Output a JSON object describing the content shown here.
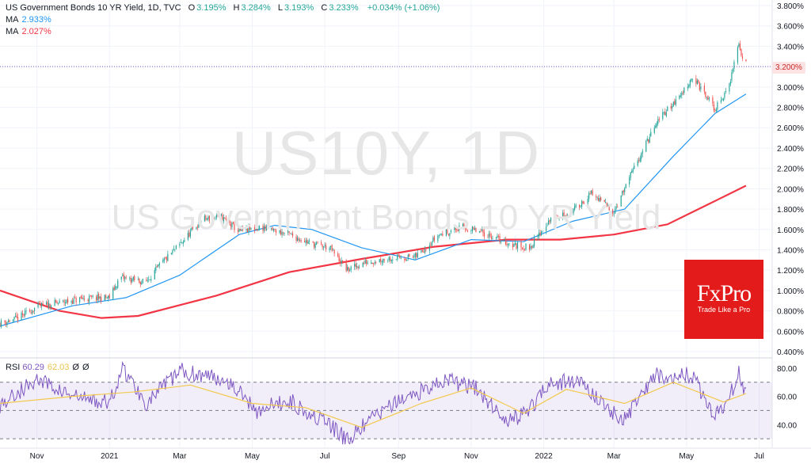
{
  "header": {
    "title": "US Government Bonds 10 YR Yield, 1D, TVC",
    "o_label": "O",
    "o_value": "3.195%",
    "h_label": "H",
    "h_value": "3.284%",
    "l_label": "L",
    "l_value": "3.193%",
    "c_label": "C",
    "c_value": "3.233%",
    "change": "+0.034% (+1.06%)",
    "ma1_label": "MA",
    "ma1_value": "2.933%",
    "ma2_label": "MA",
    "ma2_value": "2.027%"
  },
  "watermark": {
    "symbol": "US10Y, 1D",
    "name": "US Government Bonds 10 YR Yield"
  },
  "brand": {
    "logo": "FxPro",
    "tagline": "Trade Like a Pro"
  },
  "last_price_label": "3.200%",
  "rsi_header": {
    "label": "RSI",
    "value1": "60.29",
    "value2": "62.03",
    "value3": "Ø",
    "value4": "Ø"
  },
  "colors": {
    "up": "#26a69a",
    "down": "#ef5350",
    "ma_fast": "#2196f3",
    "ma_slow": "#f23645",
    "rsi": "#7e57c2",
    "rsi_ma": "#f2c94c",
    "brand": "#e31b1b"
  },
  "chart_data": [
    {
      "type": "candlestick",
      "title": "US Government Bonds 10 YR Yield, 1D, TVC",
      "x_range": [
        "2020-10-01",
        "2022-07-12"
      ],
      "ylim": [
        0.4,
        3.8
      ],
      "y_ticks": [
        "3.800%",
        "3.600%",
        "3.400%",
        "3.200%",
        "3.000%",
        "2.800%",
        "2.600%",
        "2.400%",
        "2.200%",
        "2.000%",
        "1.800%",
        "1.600%",
        "1.400%",
        "1.200%",
        "1.000%",
        "0.800%",
        "0.600%",
        "0.400%"
      ],
      "x_ticks": [
        "Nov",
        "2021",
        "Mar",
        "May",
        "Jul",
        "Sep",
        "Nov",
        "2022",
        "Mar",
        "May",
        "Jul"
      ],
      "x_tick_dates": [
        "2020-11-01",
        "2021-01-01",
        "2021-03-01",
        "2021-05-01",
        "2021-07-01",
        "2021-09-01",
        "2021-11-01",
        "2022-01-01",
        "2022-03-01",
        "2022-05-01",
        "2022-07-01"
      ],
      "price_path": {
        "dates": [
          "2020-10-01",
          "2020-10-15",
          "2020-11-01",
          "2020-11-20",
          "2020-12-10",
          "2021-01-01",
          "2021-01-10",
          "2021-01-31",
          "2021-02-15",
          "2021-03-01",
          "2021-03-20",
          "2021-04-05",
          "2021-04-20",
          "2021-05-10",
          "2021-06-01",
          "2021-06-20",
          "2021-07-05",
          "2021-07-20",
          "2021-08-05",
          "2021-08-25",
          "2021-09-15",
          "2021-10-05",
          "2021-10-25",
          "2021-11-15",
          "2021-12-05",
          "2021-12-20",
          "2022-01-05",
          "2022-01-25",
          "2022-02-10",
          "2022-03-01",
          "2022-03-10",
          "2022-03-25",
          "2022-04-10",
          "2022-04-25",
          "2022-05-06",
          "2022-05-25",
          "2022-06-05",
          "2022-06-14",
          "2022-06-16",
          "2022-06-20"
        ],
        "values": [
          0.68,
          0.72,
          0.84,
          0.88,
          0.92,
          0.93,
          1.13,
          1.08,
          1.28,
          1.45,
          1.7,
          1.72,
          1.58,
          1.62,
          1.55,
          1.46,
          1.42,
          1.2,
          1.28,
          1.32,
          1.33,
          1.55,
          1.62,
          1.55,
          1.45,
          1.42,
          1.68,
          1.78,
          1.95,
          1.78,
          2.0,
          2.38,
          2.72,
          2.9,
          3.1,
          2.78,
          2.98,
          3.44,
          3.3,
          3.23
        ]
      },
      "series": [
        {
          "name": "MA",
          "last": 2.933,
          "dates": [
            "2020-10-01",
            "2020-12-01",
            "2021-01-15",
            "2021-03-01",
            "2021-04-20",
            "2021-05-20",
            "2021-06-20",
            "2021-08-01",
            "2021-09-15",
            "2021-11-01",
            "2021-12-15",
            "2022-01-25",
            "2022-03-10",
            "2022-04-20",
            "2022-05-25",
            "2022-06-20"
          ],
          "values": [
            0.65,
            0.85,
            0.93,
            1.15,
            1.55,
            1.64,
            1.6,
            1.42,
            1.3,
            1.5,
            1.48,
            1.68,
            1.8,
            2.32,
            2.74,
            2.93
          ]
        },
        {
          "name": "MA",
          "last": 2.027,
          "dates": [
            "2020-10-01",
            "2020-11-20",
            "2020-12-25",
            "2021-01-25",
            "2021-04-01",
            "2021-06-01",
            "2021-08-01",
            "2021-10-01",
            "2021-12-01",
            "2022-01-15",
            "2022-03-01",
            "2022-04-15",
            "2022-05-25",
            "2022-06-20"
          ],
          "values": [
            1.0,
            0.8,
            0.73,
            0.75,
            0.95,
            1.18,
            1.31,
            1.43,
            1.5,
            1.5,
            1.55,
            1.65,
            1.88,
            2.03
          ]
        }
      ]
    },
    {
      "type": "line",
      "title": "RSI",
      "ylim": [
        25,
        85
      ],
      "y_ticks": [
        "80.00",
        "60.00",
        "40.00"
      ],
      "bands": [
        70,
        50,
        30
      ],
      "series": [
        {
          "name": "RSI",
          "last": 60.29,
          "dates": [
            "2020-10-01",
            "2020-11-01",
            "2020-12-01",
            "2021-01-01",
            "2021-01-12",
            "2021-02-01",
            "2021-03-01",
            "2021-04-10",
            "2021-05-05",
            "2021-06-01",
            "2021-07-01",
            "2021-07-20",
            "2021-08-15",
            "2021-09-10",
            "2021-10-10",
            "2021-11-05",
            "2021-12-01",
            "2021-12-20",
            "2022-01-05",
            "2022-02-01",
            "2022-03-08",
            "2022-04-05",
            "2022-05-05",
            "2022-05-25",
            "2022-06-05",
            "2022-06-14",
            "2022-06-20"
          ],
          "values": [
            54,
            72,
            60,
            55,
            80,
            55,
            78,
            72,
            50,
            57,
            42,
            29,
            48,
            60,
            72,
            66,
            42,
            50,
            70,
            70,
            42,
            75,
            75,
            47,
            58,
            77,
            60.29
          ]
        },
        {
          "name": "RSI MA",
          "last": 62.03,
          "dates": [
            "2020-10-01",
            "2020-12-01",
            "2021-01-20",
            "2021-03-10",
            "2021-05-01",
            "2021-06-15",
            "2021-08-01",
            "2021-09-20",
            "2021-11-01",
            "2021-12-15",
            "2022-01-20",
            "2022-03-10",
            "2022-04-20",
            "2022-06-01",
            "2022-06-20"
          ],
          "values": [
            55,
            60,
            63,
            68,
            55,
            52,
            38,
            55,
            66,
            48,
            65,
            55,
            70,
            56,
            62.03
          ]
        }
      ]
    }
  ]
}
